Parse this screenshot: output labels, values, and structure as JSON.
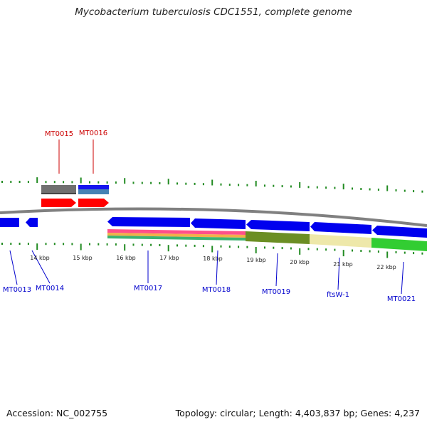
{
  "header": {
    "title": "Mycobacterium tuberculosis CDC1551, complete genome"
  },
  "footer": {
    "accession": "Accession: NC_002755",
    "summary": "Topology: circular; Length: 4,403,837 bp; Genes: 4,237"
  },
  "map": {
    "scale_labels": [
      "14 kbp",
      "15 kbp",
      "16 kbp",
      "17 kbp",
      "18 kbp",
      "19 kbp",
      "20 kbp",
      "21 kbp",
      "22 kbp"
    ],
    "gene_labels_top": [
      "MT0015",
      "MT0016"
    ],
    "gene_labels_bottom": [
      "MT0013",
      "MT0014",
      "MT0017",
      "MT0018",
      "MT0019",
      "ftsW-1",
      "MT0021"
    ],
    "colors": {
      "forward_label": "#cc0000",
      "reverse_label": "#0000cc",
      "forward_gene": "#ff0000",
      "reverse_gene": "#0000ee",
      "backbone": "#808080",
      "tick": "#228b22",
      "cog_olive": "#6b8e23",
      "cog_tan": "#eee8aa",
      "cog_green": "#32cd32"
    }
  }
}
